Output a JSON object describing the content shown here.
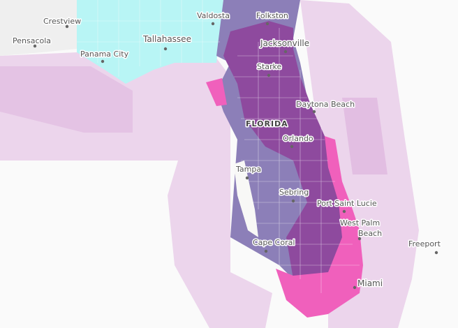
{
  "places": [
    {
      "label": "Crestview"
    },
    {
      "label": "Pensacola"
    },
    {
      "label": "Valdosta"
    },
    {
      "label": "Folkston"
    },
    {
      "label": "Tallahassee"
    },
    {
      "label": "Panama City"
    },
    {
      "label": "Jacksonville"
    },
    {
      "label": "Starke"
    },
    {
      "label": "Daytona Beach"
    },
    {
      "label": "Orlando"
    },
    {
      "label": "Tampa"
    },
    {
      "label": "Sebring"
    },
    {
      "label": "Port Saint Lucie"
    },
    {
      "label": [
        "West Palm",
        "Beach"
      ]
    },
    {
      "label": "Cape Coral"
    },
    {
      "label": "Freeport"
    },
    {
      "label": "Miami"
    }
  ],
  "state_label": "FLORIDA"
}
